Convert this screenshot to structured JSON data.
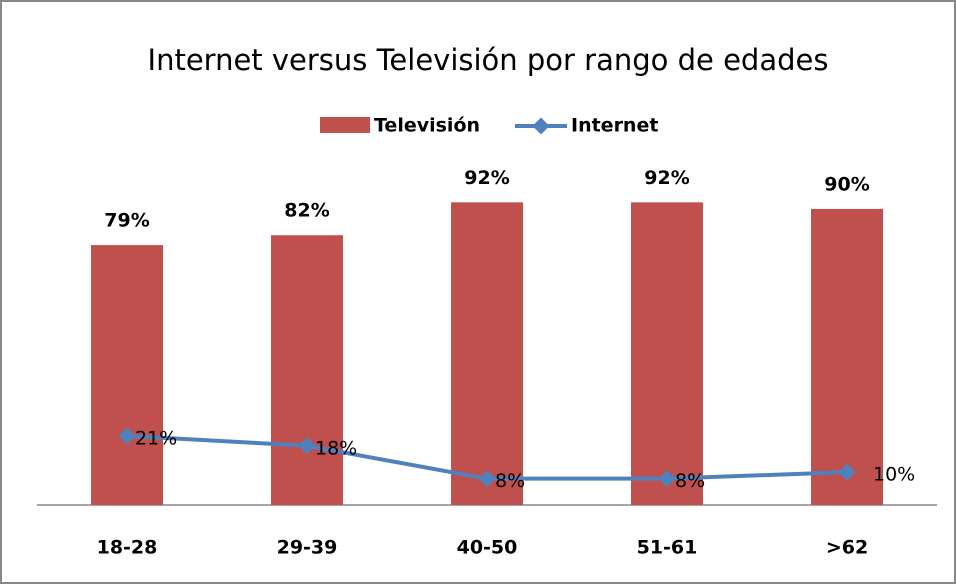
{
  "chart_data": {
    "type": "bar",
    "title": "Internet  versus Televisión por rango de edades",
    "categories": [
      "18-28",
      "29-39",
      "40-50",
      "51-61",
      ">62"
    ],
    "series": [
      {
        "name": "Televisión",
        "type": "bar",
        "color": "#c0504d",
        "values": [
          79,
          82,
          92,
          92,
          90
        ],
        "value_labels": [
          "79%",
          "82%",
          "92%",
          "92%",
          "90%"
        ]
      },
      {
        "name": "Internet",
        "type": "line",
        "color": "#4f81bd",
        "values": [
          21,
          18,
          8,
          8,
          10
        ],
        "value_labels": [
          "21%",
          "18%",
          "8%",
          "8%",
          "10%"
        ]
      }
    ],
    "ylim": [
      0,
      100
    ],
    "legend": "top"
  }
}
